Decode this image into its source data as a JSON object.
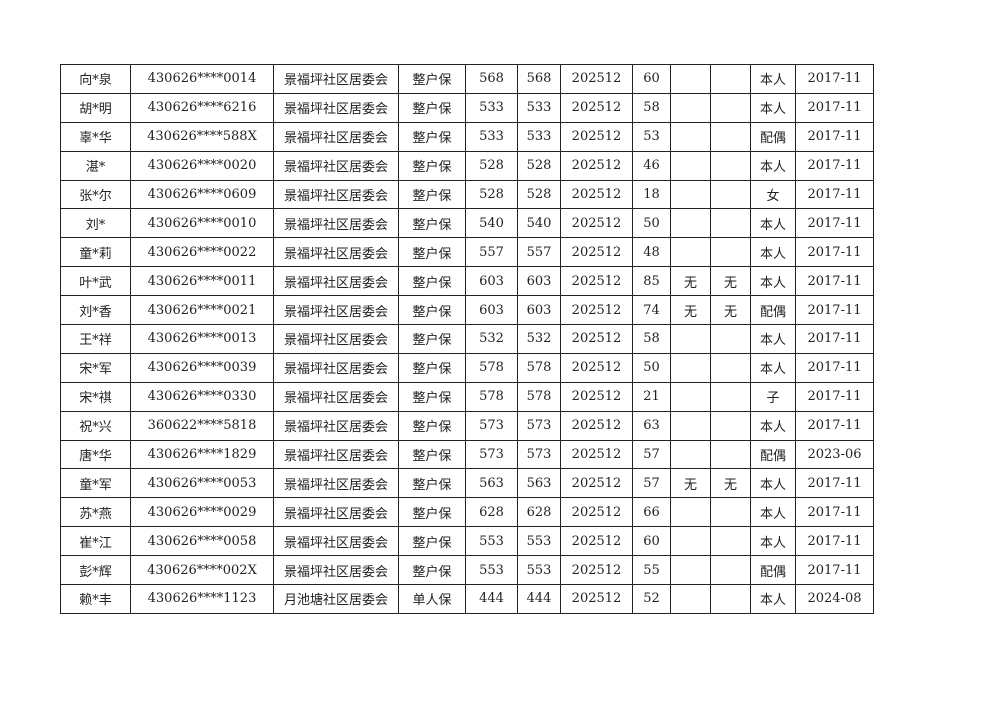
{
  "rows": [
    [
      "向*泉",
      "430626****0014",
      "景福坪社区居委会",
      "整户保",
      "568",
      "568",
      "202512",
      "60",
      "",
      "",
      "本人",
      "2017-11"
    ],
    [
      "胡*明",
      "430626****6216",
      "景福坪社区居委会",
      "整户保",
      "533",
      "533",
      "202512",
      "58",
      "",
      "",
      "本人",
      "2017-11"
    ],
    [
      "辜*华",
      "430626****588X",
      "景福坪社区居委会",
      "整户保",
      "533",
      "533",
      "202512",
      "53",
      "",
      "",
      "配偶",
      "2017-11"
    ],
    [
      "湛*",
      "430626****0020",
      "景福坪社区居委会",
      "整户保",
      "528",
      "528",
      "202512",
      "46",
      "",
      "",
      "本人",
      "2017-11"
    ],
    [
      "张*尔",
      "430626****0609",
      "景福坪社区居委会",
      "整户保",
      "528",
      "528",
      "202512",
      "18",
      "",
      "",
      "女",
      "2017-11"
    ],
    [
      "刘*",
      "430626****0010",
      "景福坪社区居委会",
      "整户保",
      "540",
      "540",
      "202512",
      "50",
      "",
      "",
      "本人",
      "2017-11"
    ],
    [
      "童*莉",
      "430626****0022",
      "景福坪社区居委会",
      "整户保",
      "557",
      "557",
      "202512",
      "48",
      "",
      "",
      "本人",
      "2017-11"
    ],
    [
      "叶*武",
      "430626****0011",
      "景福坪社区居委会",
      "整户保",
      "603",
      "603",
      "202512",
      "85",
      "无",
      "无",
      "本人",
      "2017-11"
    ],
    [
      "刘*香",
      "430626****0021",
      "景福坪社区居委会",
      "整户保",
      "603",
      "603",
      "202512",
      "74",
      "无",
      "无",
      "配偶",
      "2017-11"
    ],
    [
      "王*祥",
      "430626****0013",
      "景福坪社区居委会",
      "整户保",
      "532",
      "532",
      "202512",
      "58",
      "",
      "",
      "本人",
      "2017-11"
    ],
    [
      "宋*军",
      "430626****0039",
      "景福坪社区居委会",
      "整户保",
      "578",
      "578",
      "202512",
      "50",
      "",
      "",
      "本人",
      "2017-11"
    ],
    [
      "宋*祺",
      "430626****0330",
      "景福坪社区居委会",
      "整户保",
      "578",
      "578",
      "202512",
      "21",
      "",
      "",
      "子",
      "2017-11"
    ],
    [
      "祝*兴",
      "360622****5818",
      "景福坪社区居委会",
      "整户保",
      "573",
      "573",
      "202512",
      "63",
      "",
      "",
      "本人",
      "2017-11"
    ],
    [
      "唐*华",
      "430626****1829",
      "景福坪社区居委会",
      "整户保",
      "573",
      "573",
      "202512",
      "57",
      "",
      "",
      "配偶",
      "2023-06"
    ],
    [
      "童*军",
      "430626****0053",
      "景福坪社区居委会",
      "整户保",
      "563",
      "563",
      "202512",
      "57",
      "无",
      "无",
      "本人",
      "2017-11"
    ],
    [
      "苏*燕",
      "430626****0029",
      "景福坪社区居委会",
      "整户保",
      "628",
      "628",
      "202512",
      "66",
      "",
      "",
      "本人",
      "2017-11"
    ],
    [
      "崔*江",
      "430626****0058",
      "景福坪社区居委会",
      "整户保",
      "553",
      "553",
      "202512",
      "60",
      "",
      "",
      "本人",
      "2017-11"
    ],
    [
      "彭*辉",
      "430626****002X",
      "景福坪社区居委会",
      "整户保",
      "553",
      "553",
      "202512",
      "55",
      "",
      "",
      "配偶",
      "2017-11"
    ],
    [
      "赖*丰",
      "430626****1123",
      "月池塘社区居委会",
      "单人保",
      "444",
      "444",
      "202512",
      "52",
      "",
      "",
      "本人",
      "2024-08"
    ]
  ]
}
